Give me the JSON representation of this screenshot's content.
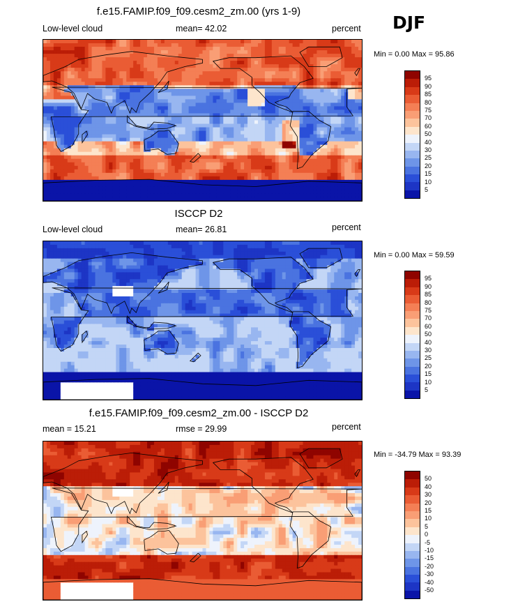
{
  "season": "DJF",
  "colors": {
    "pos": [
      "#fdf5ea",
      "#fde0c5",
      "#fcc09c",
      "#f99b74",
      "#f4784f",
      "#e9592f",
      "#d93d18",
      "#c21f08",
      "#a60a02",
      "#8a0000"
    ],
    "neg": [
      "#e2ecfb",
      "#bdd4f5",
      "#94b8ee",
      "#6e99e6",
      "#4a78dc",
      "#2c58cf",
      "#163cc0",
      "#0824a8",
      "#001590",
      "#000c78"
    ],
    "levels_pct": [
      "#0a14a8",
      "#1d35c5",
      "#2a4fd8",
      "#4a73e0",
      "#6e95e8",
      "#98b6f0",
      "#c3d6f6",
      "#eef3fc",
      "#fde5cc",
      "#fcc39c",
      "#f99e75",
      "#f47f55",
      "#ea5c34",
      "#d83a18",
      "#bb1d07",
      "#8f0400"
    ],
    "levels_diff": [
      "#0a14a8",
      "#1d35c5",
      "#2a4fd8",
      "#4a73e0",
      "#6e95e8",
      "#98b6f0",
      "#c3d6f6",
      "#eef3fc",
      "#fde5cc",
      "#fcc39c",
      "#f99e75",
      "#f47f55",
      "#ea5c34",
      "#d83a18",
      "#bb1d07",
      "#8f0400"
    ]
  },
  "panels": [
    {
      "title": "f.e15.FAMIP.f09_f09.cesm2_zm.00 (yrs 1-9)",
      "left_label": "Low-level cloud",
      "center_label": "mean=  42.02",
      "right_label": "percent",
      "minmax": "Min =   0.00 Max =  95.86",
      "mode": "model"
    },
    {
      "title": "ISCCP D2",
      "left_label": "Low-level cloud",
      "center_label": "mean=  26.81",
      "right_label": "percent",
      "minmax": "Min =   0.00 Max =  59.59",
      "mode": "obs"
    },
    {
      "title": "f.e15.FAMIP.f09_f09.cesm2_zm.00 - ISCCP D2",
      "left_label": "mean =  15.21",
      "center_label": "rmse =  29.99",
      "right_label": "percent",
      "minmax": "Min = -34.79 Max =  93.39",
      "mode": "diff"
    }
  ],
  "colorbars": [
    {
      "labels": [
        "95",
        "90",
        "85",
        "80",
        "75",
        "70",
        "60",
        "50",
        "40",
        "30",
        "25",
        "20",
        "15",
        "10",
        "5"
      ]
    },
    {
      "labels": [
        "95",
        "90",
        "85",
        "80",
        "75",
        "70",
        "60",
        "50",
        "40",
        "30",
        "25",
        "20",
        "15",
        "10",
        "5"
      ]
    },
    {
      "labels": [
        "50",
        "40",
        "30",
        "20",
        "15",
        "10",
        "5",
        "0",
        "-5",
        "-10",
        "-15",
        "-20",
        "-30",
        "-40",
        "-50"
      ]
    }
  ],
  "chart_data": [
    {
      "type": "heatmap",
      "title": "f.e15.FAMIP.f09_f09.cesm2_zm.00 (yrs 1-9)",
      "field": "Low-level cloud",
      "units": "percent",
      "mean": 42.02,
      "min": 0.0,
      "max": 95.86,
      "levels": [
        5,
        10,
        15,
        20,
        25,
        30,
        40,
        50,
        60,
        70,
        75,
        80,
        85,
        90,
        95
      ]
    },
    {
      "type": "heatmap",
      "title": "ISCCP D2",
      "field": "Low-level cloud",
      "units": "percent",
      "mean": 26.81,
      "min": 0.0,
      "max": 59.59,
      "levels": [
        5,
        10,
        15,
        20,
        25,
        30,
        40,
        50,
        60,
        70,
        75,
        80,
        85,
        90,
        95
      ]
    },
    {
      "type": "heatmap",
      "title": "f.e15.FAMIP.f09_f09.cesm2_zm.00 - ISCCP D2",
      "units": "percent",
      "mean": 15.21,
      "rmse": 29.99,
      "min": -34.79,
      "max": 93.39,
      "levels": [
        -50,
        -40,
        -30,
        -20,
        -15,
        -10,
        -5,
        0,
        5,
        10,
        15,
        20,
        30,
        40,
        50
      ]
    }
  ]
}
